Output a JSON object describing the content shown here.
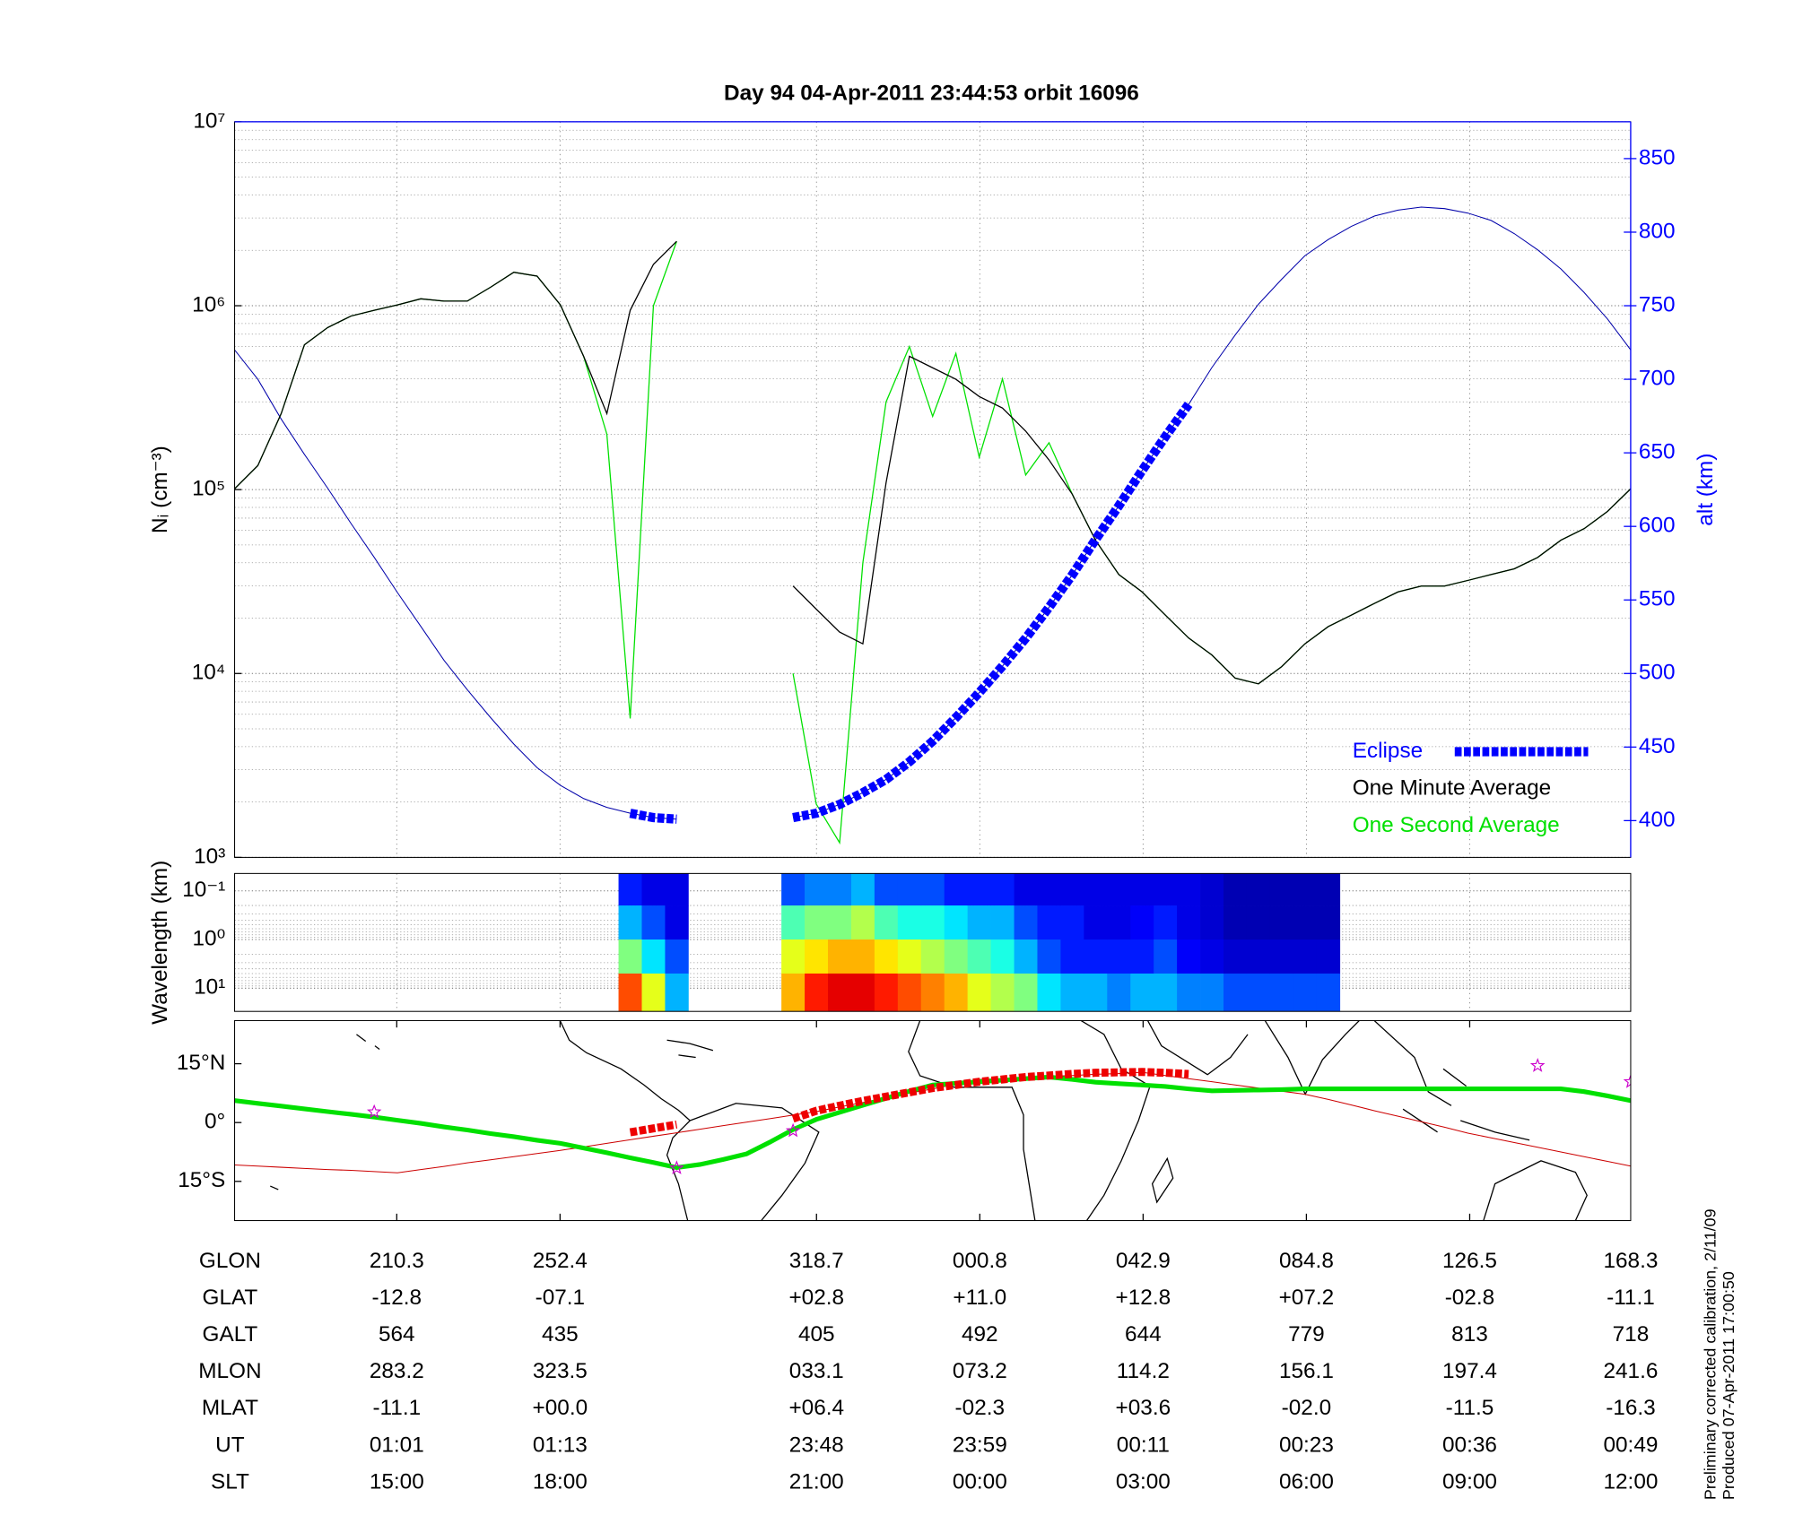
{
  "chart_data": [
    {
      "type": "line",
      "title": "Day 94  04-Apr-2011 23:44:53   orbit 16096",
      "ylabel": "Nᵢ (cm⁻³)",
      "y2label": "alt (km)",
      "ylim": [
        1000,
        10000000
      ],
      "log_y": true,
      "yticks": [
        {
          "value": 1000,
          "label": "10³"
        },
        {
          "value": 10000,
          "label": "10⁴"
        },
        {
          "value": 100000,
          "label": "10⁵"
        },
        {
          "value": 1000000,
          "label": "10⁶"
        },
        {
          "value": 10000000,
          "label": "10⁷"
        }
      ],
      "y2lim": [
        375,
        875
      ],
      "y2ticks": [
        400,
        450,
        500,
        550,
        600,
        650,
        700,
        750,
        800,
        850
      ],
      "y2_color": "#0000ff",
      "grid": true,
      "legend": "lower right",
      "series": [
        {
          "name": "Eclipse",
          "color": "#0000ff",
          "axis": "y2",
          "linewidth": 8,
          "dash": "6 2",
          "values": [
            null,
            null,
            null,
            null,
            null,
            null,
            null,
            null,
            null,
            null,
            null,
            null,
            null,
            null,
            null,
            null,
            null,
            405,
            402,
            401,
            null,
            null,
            null,
            null,
            402,
            405,
            411,
            419,
            428,
            440,
            454,
            470,
            487,
            505,
            524,
            545,
            567,
            591,
            614,
            638,
            661,
            683,
            null,
            null,
            null,
            null,
            null,
            null,
            null,
            null,
            null,
            null,
            null,
            null,
            null,
            null,
            null,
            null,
            null,
            null,
            null
          ]
        },
        {
          "name": "One Minute Average",
          "color": "#000000",
          "linewidth": 1,
          "values": [
            101000,
            135000,
            259000,
            613000,
            761000,
            879000,
            944000,
            1010000,
            1090000,
            1060000,
            1060000,
            1260000,
            1520000,
            1450000,
            1010000,
            531000,
            259000,
            944000,
            1680000,
            2240000,
            null,
            null,
            null,
            null,
            29900,
            22400,
            16800,
            14500,
            109000,
            531000,
            460000,
            398000,
            321000,
            278000,
            208000,
            145000,
            94400,
            53100,
            34500,
            27800,
            20800,
            15600,
            12600,
            9440,
            8790,
            10900,
            14500,
            18000,
            20800,
            24100,
            27800,
            29900,
            29900,
            32100,
            34500,
            37100,
            42800,
            53100,
            61300,
            76100,
            101000
          ]
        },
        {
          "name": "One Second Average",
          "color": "#00e000",
          "linewidth": 1,
          "values": [
            101000,
            135000,
            259000,
            613000,
            761000,
            879000,
            944000,
            1010000,
            1090000,
            1060000,
            1060000,
            1260000,
            1520000,
            1450000,
            1010000,
            531000,
            200000,
            5700,
            1000000,
            2240000,
            null,
            null,
            null,
            null,
            10000,
            1950,
            1200,
            40000,
            300000,
            600000,
            250000,
            550000,
            150000,
            400000,
            120000,
            180000,
            94400,
            53100,
            34500,
            27800,
            20800,
            15600,
            12600,
            9440,
            8790,
            10900,
            14500,
            18000,
            20800,
            24100,
            27800,
            29900,
            29900,
            32100,
            34500,
            37100,
            42800,
            53100,
            61300,
            76100,
            101000
          ]
        },
        {
          "color": "#0000aa",
          "axis": "y2",
          "linewidth": 0.8,
          "values": [
            720,
            700,
            673,
            649,
            626,
            602,
            579,
            555,
            532,
            509,
            489,
            470,
            452,
            436,
            424,
            415,
            409,
            405,
            402,
            401,
            null,
            null,
            null,
            null,
            402,
            405,
            411,
            419,
            428,
            440,
            454,
            470,
            487,
            505,
            524,
            545,
            567,
            591,
            614,
            638,
            661,
            683,
            708,
            730,
            751,
            768,
            784,
            795,
            804,
            811,
            815,
            817,
            816,
            813,
            808,
            799,
            788,
            775,
            759,
            741,
            720
          ]
        }
      ]
    },
    {
      "type": "heatmap",
      "ylabel": "Wavelength (km)",
      "ylim": [
        0.044,
        30
      ],
      "log_y": true,
      "invert_y": true,
      "colormap": "jet",
      "yticks": [
        {
          "value": 0.1,
          "label": "10⁻¹"
        },
        {
          "value": 1,
          "label": "10⁰"
        },
        {
          "value": 10,
          "label": "10¹"
        }
      ],
      "y_edges": [
        0.044,
        0.2,
        1,
        5,
        30
      ],
      "z": [
        null,
        null,
        null,
        null,
        null,
        null,
        null,
        null,
        null,
        null,
        null,
        null,
        null,
        null,
        null,
        null,
        null,
        [
          0.15,
          0.3,
          0.5,
          0.8
        ],
        [
          0.1,
          0.2,
          0.35,
          0.6
        ],
        [
          0.1,
          0.1,
          0.2,
          0.3
        ],
        null,
        null,
        null,
        null,
        [
          0.2,
          0.45,
          0.6,
          0.7
        ],
        [
          0.25,
          0.5,
          0.65,
          0.85
        ],
        [
          0.25,
          0.5,
          0.7,
          0.9
        ],
        [
          0.3,
          0.55,
          0.7,
          0.9
        ],
        [
          0.2,
          0.45,
          0.65,
          0.85
        ],
        [
          0.2,
          0.4,
          0.6,
          0.8
        ],
        [
          0.2,
          0.4,
          0.55,
          0.75
        ],
        [
          0.15,
          0.35,
          0.5,
          0.7
        ],
        [
          0.15,
          0.3,
          0.45,
          0.6
        ],
        [
          0.15,
          0.3,
          0.4,
          0.55
        ],
        [
          0.1,
          0.2,
          0.3,
          0.5
        ],
        [
          0.1,
          0.15,
          0.2,
          0.35
        ],
        [
          0.1,
          0.15,
          0.15,
          0.3
        ],
        [
          0.1,
          0.1,
          0.15,
          0.3
        ],
        [
          0.1,
          0.1,
          0.15,
          0.25
        ],
        [
          0.1,
          0.12,
          0.15,
          0.3
        ],
        [
          0.1,
          0.15,
          0.2,
          0.3
        ],
        [
          0.1,
          0.1,
          0.12,
          0.25
        ],
        [
          0.08,
          0.08,
          0.1,
          0.25
        ],
        [
          0.05,
          0.05,
          0.08,
          0.2
        ],
        [
          0.05,
          0.05,
          0.08,
          0.2
        ],
        [
          0.05,
          0.05,
          0.08,
          0.2
        ],
        [
          0.05,
          0.05,
          0.08,
          0.2
        ],
        [
          0.05,
          0.05,
          0.08,
          0.2
        ],
        null,
        null,
        null,
        null,
        null,
        null,
        null,
        null,
        null,
        null,
        null,
        null,
        null
      ]
    },
    {
      "type": "map",
      "ylim": [
        -25,
        26
      ],
      "yticks": [
        {
          "value": 15,
          "label": "15°N"
        },
        {
          "value": 0,
          "label": "0°"
        },
        {
          "value": -15,
          "label": "15°S"
        }
      ],
      "series": [
        {
          "color": "#cc0000",
          "linewidth": 0.8,
          "values": [
            -10.8,
            -11.1,
            -11.4,
            -11.7,
            -12.0,
            -12.2,
            -12.5,
            -12.8,
            -12.0,
            -11.2,
            -10.3,
            -9.5,
            -8.7,
            -7.9,
            -7.1,
            -6.2,
            -5.3,
            -4.4,
            -3.5,
            -2.6,
            -1.7,
            -0.8,
            0.1,
            1.0,
            1.9,
            2.8,
            4.0,
            5.1,
            6.3,
            7.5,
            8.6,
            9.8,
            11.0,
            11.2,
            11.5,
            11.8,
            12.0,
            12.3,
            12.5,
            12.8,
            12.0,
            11.2,
            10.4,
            9.6,
            8.8,
            8.0,
            7.2,
            5.9,
            4.5,
            3.0,
            1.6,
            0.2,
            -1.2,
            -2.7,
            -3.9,
            -5.1,
            -6.3,
            -7.5,
            -8.7,
            -9.9,
            -11.1
          ]
        },
        {
          "color": "#00e000",
          "linewidth": 4,
          "values": [
            5.6,
            4.9,
            4.2,
            3.5,
            2.8,
            2.1,
            1.4,
            0.6,
            -0.2,
            -1.1,
            -1.9,
            -2.8,
            -3.6,
            -4.5,
            -5.3,
            -6.5,
            -7.7,
            -9.0,
            -10.2,
            -11.5,
            -10.7,
            -9.4,
            -8.0,
            -5.0,
            -1.8,
            0.8,
            2.6,
            4.4,
            6.2,
            8.0,
            9.6,
            10.0,
            10.4,
            10.8,
            11.2,
            11.6,
            11.0,
            10.3,
            9.9,
            9.6,
            9.2,
            8.6,
            8.1,
            8.2,
            8.3,
            8.4,
            8.6,
            8.6,
            8.6,
            8.6,
            8.6,
            8.6,
            8.6,
            8.6,
            8.6,
            8.6,
            8.6,
            8.6,
            7.9,
            6.8,
            5.6
          ]
        },
        {
          "color": "#ee0000",
          "linewidth": 7,
          "dash": "6 2",
          "values": [
            null,
            null,
            null,
            null,
            null,
            null,
            null,
            null,
            null,
            null,
            null,
            null,
            null,
            null,
            null,
            null,
            null,
            -2.5,
            -1.5,
            -0.5,
            null,
            null,
            null,
            null,
            1.0,
            3.0,
            4.3,
            5.5,
            6.6,
            7.7,
            8.8,
            9.6,
            10.4,
            11.0,
            11.6,
            12.0,
            12.4,
            12.7,
            12.8,
            12.9,
            12.7,
            12.4,
            null,
            null,
            null,
            null,
            null,
            null,
            null,
            null,
            null,
            null,
            null,
            null,
            null,
            null,
            null,
            null,
            null,
            null,
            null
          ]
        },
        {
          "color": "#cc00cc",
          "marker": "star",
          "values": [
            null,
            null,
            null,
            null,
            null,
            null,
            2.7,
            null,
            null,
            null,
            null,
            null,
            null,
            null,
            null,
            null,
            null,
            null,
            null,
            -11.6,
            null,
            null,
            null,
            null,
            -2.1,
            null,
            null,
            null,
            null,
            null,
            null,
            null,
            null,
            null,
            null,
            null,
            null,
            null,
            null,
            null,
            null,
            null,
            null,
            null,
            null,
            null,
            null,
            null,
            null,
            null,
            null,
            null,
            null,
            null,
            null,
            null,
            14.5,
            null,
            null,
            null,
            10.4
          ]
        }
      ]
    }
  ],
  "table": {
    "row_labels": [
      "GLON",
      "GLAT",
      "GALT",
      "MLON",
      "MLAT",
      "UT",
      "SLT"
    ],
    "rows": [
      [
        "210.3",
        "252.4",
        "318.7",
        "000.8",
        "042.9",
        "084.8",
        "126.5",
        "168.3"
      ],
      [
        "-12.8",
        "-07.1",
        "+02.8",
        "+11.0",
        "+12.8",
        "+07.2",
        "-02.8",
        "-11.1"
      ],
      [
        "564",
        "435",
        "405",
        "492",
        "644",
        "779",
        "813",
        "718"
      ],
      [
        "283.2",
        "323.5",
        "033.1",
        "073.2",
        "114.2",
        "156.1",
        "197.4",
        "241.6"
      ],
      [
        "-11.1",
        "+00.0",
        "+06.4",
        "-02.3",
        "+03.6",
        "-02.0",
        "-11.5",
        "-16.3"
      ],
      [
        "01:01",
        "01:13",
        "23:48",
        "23:59",
        "00:11",
        "00:23",
        "00:36",
        "00:49"
      ],
      [
        "15:00",
        "18:00",
        "21:00",
        "00:00",
        "03:00",
        "06:00",
        "09:00",
        "12:00"
      ]
    ]
  },
  "notes": [
    "Preliminary corrected calibration, 2/11/09",
    "Produced 07-Apr-2011 17:00:50"
  ]
}
